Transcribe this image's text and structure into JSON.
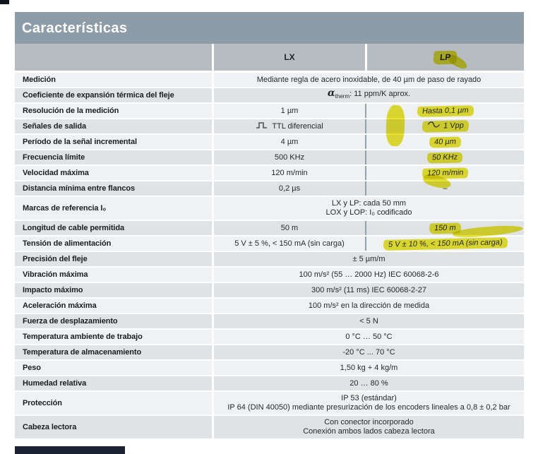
{
  "section": {
    "title": "Características"
  },
  "table": {
    "columns": [
      "LX",
      "LP"
    ],
    "colors": {
      "title_band": "#8d9ca6",
      "header_band": "#b6bcc0",
      "row_light": "#eff1f2",
      "row_dark": "#dfe3e5",
      "column_divider": "#93a2ac",
      "highlight": "#e8e232"
    },
    "rows": [
      {
        "type": "span",
        "label": "Medición",
        "lines": [
          "Mediante regla de acero inoxidable, de 40 µm de paso de rayado"
        ]
      },
      {
        "type": "alpha",
        "label": "Coeficiente de expansión térmica del fleje",
        "alpha": "α",
        "alpha_sub": "therm",
        "rest": ": 11 ppm/K aprox."
      },
      {
        "type": "split",
        "label": "Resolución de la medición",
        "lx": "1 µm",
        "lp": "Hasta 0,1 µm",
        "lp_hl": true
      },
      {
        "type": "split",
        "label": "Señales de salida",
        "lx": "TTL diferencial",
        "lx_icon": "pulse-wave-icon",
        "lp": "1 Vpp",
        "lp_icon": "sine-wave-icon",
        "lp_hl": true
      },
      {
        "type": "split",
        "label": "Período de la señal incremental",
        "lx": "4 µm",
        "lp": "40 µm",
        "lp_hl": true
      },
      {
        "type": "split",
        "label": "Frecuencia límite",
        "lx": "500 KHz",
        "lp": "50 KHz",
        "lp_hl": true
      },
      {
        "type": "split",
        "label": "Velocidad máxima",
        "lx": "120 m/min",
        "lp": "120 m/min",
        "lp_hl": true
      },
      {
        "type": "split",
        "label": "Distancia mínima entre flancos",
        "lx": "0,2 µs",
        "lp": "–",
        "lp_hl": false
      },
      {
        "type": "span",
        "label": "Marcas de referencia I₀",
        "lines": [
          "LX y LP: cada 50 mm",
          "LOX y LOP: I₀ codificado"
        ]
      },
      {
        "type": "split",
        "label": "Longitud de cable permitida",
        "lx": "50 m",
        "lp": "150 m",
        "lp_hl": true
      },
      {
        "type": "split",
        "label": "Tensión de alimentación",
        "lx": "5 V ± 5 %, < 150 mA (sin carga)",
        "lp": "5 V ± 10 %, < 150 mA (sin carga)",
        "lp_hl": true
      },
      {
        "type": "span",
        "label": "Precisión del fleje",
        "lines": [
          "± 5 µm/m"
        ]
      },
      {
        "type": "span",
        "label": "Vibración máxima",
        "lines": [
          "100 m/s² (55 … 2000 Hz) IEC 60068-2-6"
        ]
      },
      {
        "type": "span",
        "label": "Impacto máximo",
        "lines": [
          "300 m/s² (11 ms) IEC 60068-2-27"
        ]
      },
      {
        "type": "span",
        "label": "Aceleración máxima",
        "lines": [
          "100 m/s² en la dirección de medida"
        ]
      },
      {
        "type": "span",
        "label": "Fuerza de desplazamiento",
        "lines": [
          "< 5 N"
        ]
      },
      {
        "type": "span",
        "label": "Temperatura ambiente de trabajo",
        "lines": [
          "0 °C … 50 °C"
        ]
      },
      {
        "type": "span",
        "label": "Temperatura de almacenamiento",
        "lines": [
          "-20 °C ... 70 °C"
        ]
      },
      {
        "type": "span",
        "label": "Peso",
        "lines": [
          "1,50 kg + 4 kg/m"
        ]
      },
      {
        "type": "span",
        "label": "Humedad relativa",
        "lines": [
          "20 … 80 %"
        ]
      },
      {
        "type": "span",
        "label": "Protección",
        "lines": [
          "IP 53 (estándar)",
          "IP 64 (DIN 40050) mediante presurización de los encoders lineales a 0,8 ± 0,2 bar"
        ]
      },
      {
        "type": "span",
        "label": "Cabeza lectora",
        "lines": [
          "Con conector incorporado",
          "Conexión ambos lados cabeza lectora"
        ]
      }
    ]
  }
}
